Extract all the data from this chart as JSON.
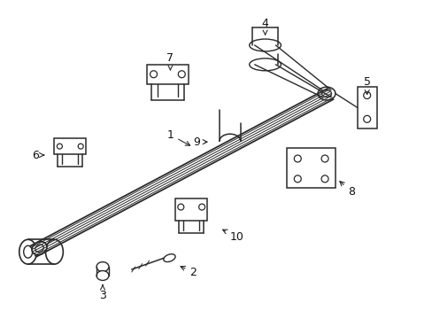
{
  "bg_color": "#ffffff",
  "line_color": "#2a2a2a",
  "figsize": [
    4.89,
    3.6
  ],
  "dpi": 100,
  "xlim": [
    0,
    489
  ],
  "ylim": [
    0,
    360
  ]
}
